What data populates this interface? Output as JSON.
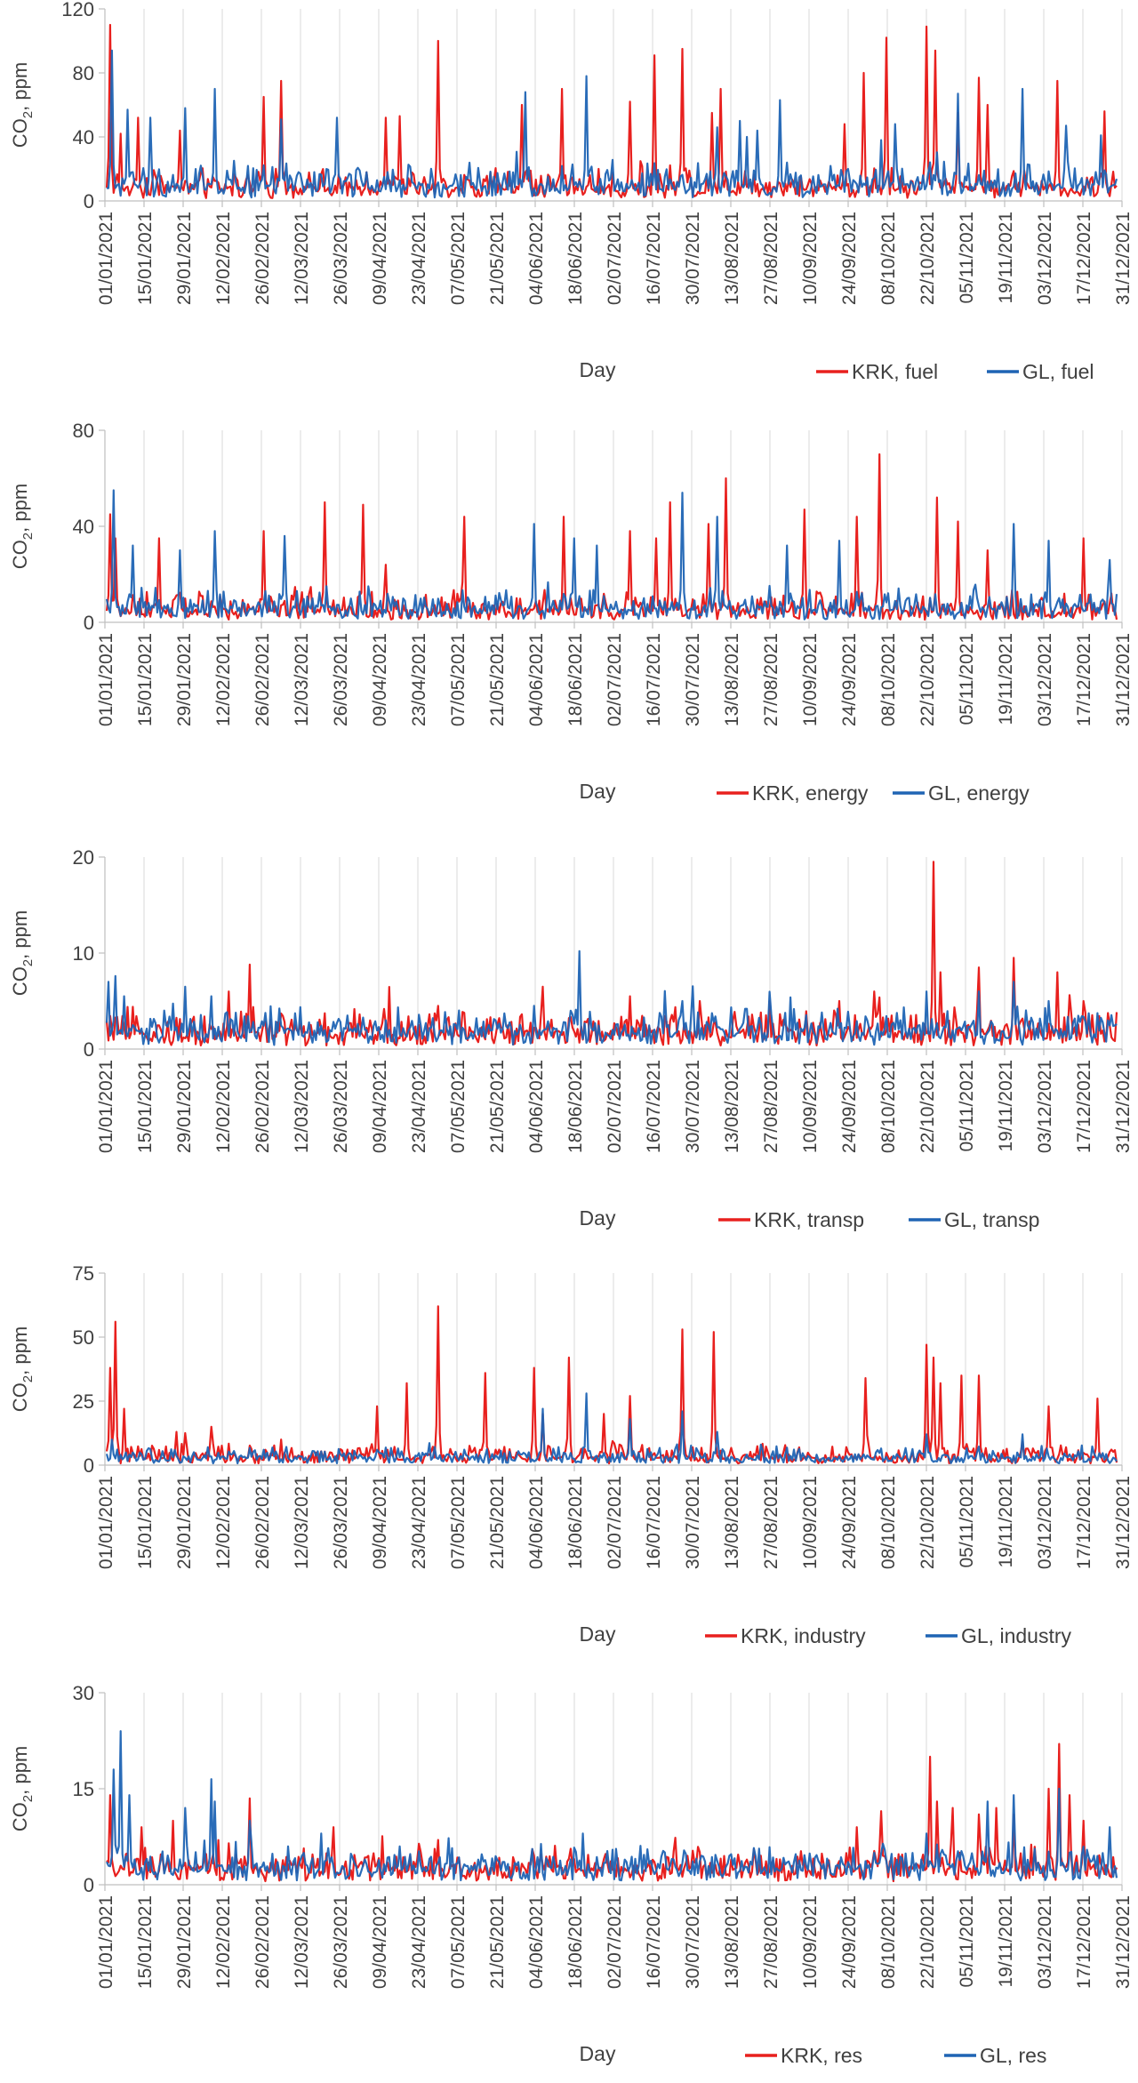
{
  "chart_data": [
    {
      "type": "line",
      "ylabel": "CO2, ppm",
      "xlabel": "Day",
      "ylim": [
        0,
        120
      ],
      "yticks": [
        0,
        40,
        80,
        120
      ],
      "x_tick_labels": [
        "01/01/2021",
        "15/01/2021",
        "29/01/2021",
        "12/02/2021",
        "26/02/2021",
        "12/03/2021",
        "26/03/2021",
        "09/04/2021",
        "23/04/2021",
        "07/05/2021",
        "21/05/2021",
        "04/06/2021",
        "18/06/2021",
        "02/07/2021",
        "16/07/2021",
        "30/07/2021",
        "13/08/2021",
        "27/08/2021",
        "10/09/2021",
        "24/09/2021",
        "08/10/2021",
        "22/10/2021",
        "05/11/2021",
        "19/11/2021",
        "03/12/2021",
        "17/12/2021",
        "31/12/2021"
      ],
      "grid": "vertical",
      "legend_position": "bottom-right",
      "series": [
        {
          "name": "KRK, fuel",
          "color": "#e8201e",
          "baseline": 7,
          "noise": 6,
          "peaks": [
            [
              2,
              110
            ],
            [
              8,
              42
            ],
            [
              18,
              52
            ],
            [
              42,
              44
            ],
            [
              90,
              65
            ],
            [
              100,
              75
            ],
            [
              160,
              52
            ],
            [
              168,
              53
            ],
            [
              190,
              100
            ],
            [
              238,
              60
            ],
            [
              261,
              70
            ],
            [
              300,
              62
            ],
            [
              314,
              91
            ],
            [
              330,
              95
            ],
            [
              347,
              55
            ],
            [
              352,
              70
            ],
            [
              423,
              48
            ],
            [
              434,
              80
            ],
            [
              447,
              102
            ],
            [
              470,
              109
            ],
            [
              475,
              94
            ],
            [
              488,
              55
            ],
            [
              500,
              77
            ],
            [
              505,
              60
            ],
            [
              545,
              75
            ],
            [
              572,
              56
            ]
          ]
        },
        {
          "name": "GL, fuel",
          "color": "#1f64b4",
          "baseline": 8,
          "noise": 7,
          "peaks": [
            [
              3,
              94
            ],
            [
              12,
              57
            ],
            [
              25,
              52
            ],
            [
              45,
              58
            ],
            [
              62,
              70
            ],
            [
              100,
              51
            ],
            [
              132,
              52
            ],
            [
              240,
              68
            ],
            [
              275,
              78
            ],
            [
              350,
              46
            ],
            [
              363,
              50
            ],
            [
              367,
              40
            ],
            [
              373,
              44
            ],
            [
              386,
              63
            ],
            [
              444,
              38
            ],
            [
              452,
              48
            ],
            [
              488,
              67
            ],
            [
              525,
              70
            ],
            [
              550,
              47
            ],
            [
              570,
              41
            ]
          ]
        }
      ]
    },
    {
      "type": "line",
      "ylabel": "CO2, ppm",
      "xlabel": "Day",
      "ylim": [
        0,
        80
      ],
      "yticks": [
        0,
        40,
        80
      ],
      "x_tick_labels": [
        "01/01/2021",
        "15/01/2021",
        "29/01/2021",
        "12/02/2021",
        "26/02/2021",
        "12/03/2021",
        "26/03/2021",
        "09/04/2021",
        "23/04/2021",
        "07/05/2021",
        "21/05/2021",
        "04/06/2021",
        "18/06/2021",
        "02/07/2021",
        "16/07/2021",
        "30/07/2021",
        "13/08/2021",
        "27/08/2021",
        "10/09/2021",
        "24/09/2021",
        "08/10/2021",
        "22/10/2021",
        "05/11/2021",
        "19/11/2021",
        "03/12/2021",
        "17/12/2021",
        "31/12/2021"
      ],
      "grid": "vertical",
      "legend_position": "bottom-right",
      "series": [
        {
          "name": "KRK, energy",
          "color": "#e8201e",
          "baseline": 4,
          "noise": 4,
          "peaks": [
            [
              2,
              45
            ],
            [
              5,
              35
            ],
            [
              30,
              35
            ],
            [
              90,
              38
            ],
            [
              125,
              50
            ],
            [
              147,
              49
            ],
            [
              160,
              24
            ],
            [
              205,
              44
            ],
            [
              262,
              44
            ],
            [
              300,
              38
            ],
            [
              315,
              35
            ],
            [
              323,
              50
            ],
            [
              345,
              41
            ],
            [
              355,
              60
            ],
            [
              400,
              47
            ],
            [
              430,
              44
            ],
            [
              443,
              70
            ],
            [
              476,
              52
            ],
            [
              488,
              42
            ],
            [
              505,
              30
            ],
            [
              560,
              35
            ]
          ]
        },
        {
          "name": "GL, energy",
          "color": "#1f64b4",
          "baseline": 5,
          "noise": 4,
          "peaks": [
            [
              4,
              55
            ],
            [
              15,
              32
            ],
            [
              42,
              30
            ],
            [
              62,
              38
            ],
            [
              102,
              36
            ],
            [
              150,
              15
            ],
            [
              245,
              41
            ],
            [
              268,
              35
            ],
            [
              281,
              32
            ],
            [
              330,
              54
            ],
            [
              350,
              44
            ],
            [
              390,
              32
            ],
            [
              420,
              34
            ],
            [
              520,
              41
            ],
            [
              540,
              34
            ],
            [
              575,
              26
            ]
          ]
        }
      ]
    },
    {
      "type": "line",
      "ylabel": "CO2, ppm",
      "xlabel": "Day",
      "ylim": [
        0,
        20
      ],
      "yticks": [
        0,
        10,
        20
      ],
      "x_tick_labels": [
        "01/01/2021",
        "15/01/2021",
        "29/01/2021",
        "12/02/2021",
        "26/02/2021",
        "12/03/2021",
        "26/03/2021",
        "09/04/2021",
        "23/04/2021",
        "07/05/2021",
        "21/05/2021",
        "04/06/2021",
        "18/06/2021",
        "02/07/2021",
        "16/07/2021",
        "30/07/2021",
        "13/08/2021",
        "27/08/2021",
        "10/09/2021",
        "24/09/2021",
        "08/10/2021",
        "22/10/2021",
        "05/11/2021",
        "19/11/2021",
        "03/12/2021",
        "17/12/2021",
        "31/12/2021"
      ],
      "grid": "vertical",
      "legend_position": "bottom-right",
      "series": [
        {
          "name": "KRK, transp",
          "color": "#e8201e",
          "baseline": 1.4,
          "noise": 1.2,
          "peaks": [
            [
              82,
              8.8
            ],
            [
              70,
              6.0
            ],
            [
              190,
              4.5
            ],
            [
              250,
              6.5
            ],
            [
              300,
              5.5
            ],
            [
              340,
              5.0
            ],
            [
              380,
              5.0
            ],
            [
              420,
              5.0
            ],
            [
              440,
              6.0
            ],
            [
              474,
              19.5
            ],
            [
              478,
              8.0
            ],
            [
              500,
              8.5
            ],
            [
              520,
              9.5
            ],
            [
              545,
              8.0
            ],
            [
              560,
              5.0
            ]
          ]
        },
        {
          "name": "GL, transp",
          "color": "#1f64b4",
          "baseline": 1.6,
          "noise": 1.1,
          "peaks": [
            [
              1,
              7.0
            ],
            [
              5,
              7.6
            ],
            [
              10,
              5.5
            ],
            [
              45,
              6.5
            ],
            [
              60,
              5.5
            ],
            [
              160,
              3.0
            ],
            [
              245,
              4.5
            ],
            [
              271,
              10.2
            ],
            [
              330,
              5.0
            ],
            [
              470,
              6.0
            ],
            [
              500,
              6.0
            ],
            [
              520,
              7.0
            ],
            [
              540,
              5.0
            ]
          ]
        }
      ]
    },
    {
      "type": "line",
      "ylabel": "CO2, ppm",
      "xlabel": "Day",
      "ylim": [
        0,
        75
      ],
      "yticks": [
        0,
        25,
        50,
        75
      ],
      "x_tick_labels": [
        "01/01/2021",
        "15/01/2021",
        "29/01/2021",
        "12/02/2021",
        "26/02/2021",
        "12/03/2021",
        "26/03/2021",
        "09/04/2021",
        "23/04/2021",
        "07/05/2021",
        "21/05/2021",
        "04/06/2021",
        "18/06/2021",
        "02/07/2021",
        "16/07/2021",
        "30/07/2021",
        "13/08/2021",
        "27/08/2021",
        "10/09/2021",
        "24/09/2021",
        "08/10/2021",
        "22/10/2021",
        "05/11/2021",
        "19/11/2021",
        "03/12/2021",
        "17/12/2021",
        "31/12/2021"
      ],
      "grid": "vertical",
      "legend_position": "bottom-right",
      "series": [
        {
          "name": "KRK, industry",
          "color": "#e8201e",
          "baseline": 2.5,
          "noise": 2.5,
          "peaks": [
            [
              2,
              38
            ],
            [
              5,
              56
            ],
            [
              10,
              22
            ],
            [
              40,
              13
            ],
            [
              60,
              15
            ],
            [
              100,
              10
            ],
            [
              155,
              23
            ],
            [
              172,
              32
            ],
            [
              190,
              62
            ],
            [
              217,
              36
            ],
            [
              245,
              38
            ],
            [
              250,
              20
            ],
            [
              265,
              42
            ],
            [
              285,
              20
            ],
            [
              300,
              27
            ],
            [
              330,
              53
            ],
            [
              348,
              52
            ],
            [
              435,
              34
            ],
            [
              470,
              47
            ],
            [
              474,
              42
            ],
            [
              478,
              32
            ],
            [
              490,
              35
            ],
            [
              500,
              35
            ],
            [
              540,
              23
            ],
            [
              568,
              26
            ]
          ]
        },
        {
          "name": "GL, industry",
          "color": "#1f64b4",
          "baseline": 2.5,
          "noise": 2.0,
          "peaks": [
            [
              3,
              10
            ],
            [
              250,
              22
            ],
            [
              275,
              28
            ],
            [
              300,
              18
            ],
            [
              330,
              21
            ],
            [
              350,
              13
            ],
            [
              375,
              8
            ],
            [
              470,
              12
            ],
            [
              525,
              12
            ]
          ]
        }
      ]
    },
    {
      "type": "line",
      "ylabel": "CO2, ppm",
      "xlabel": "Day",
      "ylim": [
        0,
        30
      ],
      "yticks": [
        0,
        15,
        30
      ],
      "x_tick_labels": [
        "01/01/2021",
        "15/01/2021",
        "29/01/2021",
        "12/02/2021",
        "26/02/2021",
        "12/03/2021",
        "26/03/2021",
        "09/04/2021",
        "23/04/2021",
        "07/05/2021",
        "21/05/2021",
        "04/06/2021",
        "18/06/2021",
        "02/07/2021",
        "16/07/2021",
        "30/07/2021",
        "13/08/2021",
        "27/08/2021",
        "10/09/2021",
        "24/09/2021",
        "08/10/2021",
        "22/10/2021",
        "05/11/2021",
        "19/11/2021",
        "03/12/2021",
        "17/12/2021",
        "31/12/2021"
      ],
      "grid": "vertical",
      "legend_position": "bottom-right",
      "series": [
        {
          "name": "KRK, res",
          "color": "#e8201e",
          "baseline": 2.2,
          "noise": 1.6,
          "peaks": [
            [
              2,
              14
            ],
            [
              20,
              9
            ],
            [
              38,
              10
            ],
            [
              82,
              13.5
            ],
            [
              130,
              9
            ],
            [
              190,
              7
            ],
            [
              430,
              9
            ],
            [
              444,
              11.5
            ],
            [
              472,
              20
            ],
            [
              476,
              13
            ],
            [
              485,
              12
            ],
            [
              500,
              11
            ],
            [
              510,
              12
            ],
            [
              520,
              11
            ],
            [
              540,
              15
            ],
            [
              546,
              22
            ],
            [
              552,
              14
            ],
            [
              560,
              10
            ]
          ]
        },
        {
          "name": "GL, res",
          "color": "#1f64b4",
          "baseline": 2.5,
          "noise": 1.6,
          "peaks": [
            [
              4,
              18
            ],
            [
              8,
              24
            ],
            [
              13,
              14
            ],
            [
              45,
              12
            ],
            [
              60,
              16.5
            ],
            [
              62,
              13
            ],
            [
              82,
              10
            ],
            [
              123,
              8
            ],
            [
              273,
              8
            ],
            [
              470,
              8
            ],
            [
              505,
              13
            ],
            [
              520,
              14
            ],
            [
              546,
              15
            ],
            [
              575,
              9
            ]
          ]
        }
      ]
    }
  ]
}
